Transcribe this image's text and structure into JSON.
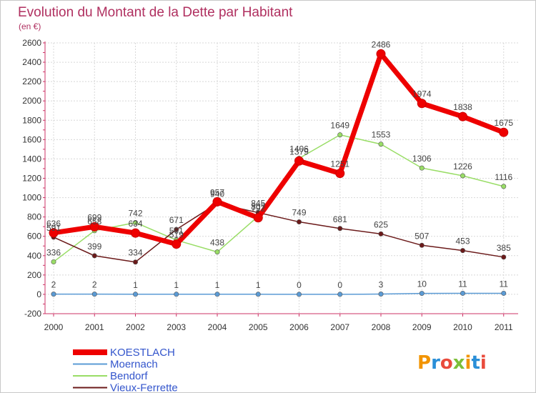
{
  "chart_data": {
    "type": "line",
    "title": "Evolution du Montant de la Dette par Habitant",
    "subtitle": "(en €)",
    "xlabel": "",
    "ylabel": "",
    "x": [
      "2000",
      "2001",
      "2002",
      "2003",
      "2004",
      "2005",
      "2006",
      "2007",
      "2008",
      "2009",
      "2010",
      "2011"
    ],
    "ylim": [
      -200,
      2600
    ],
    "yticks": [
      -200,
      0,
      200,
      400,
      600,
      800,
      1000,
      1200,
      1400,
      1600,
      1800,
      2000,
      2200,
      2400,
      2600
    ],
    "grid": true,
    "legend_position": "bottom-left",
    "series": [
      {
        "name": "KOESTLACH",
        "color": "#ee0000",
        "width": 7,
        "marker_r": 6,
        "values": [
          636,
          699,
          634,
          519,
          957,
          792,
          1379,
          1251,
          2486,
          1974,
          1838,
          1675
        ]
      },
      {
        "name": "Moernach",
        "color": "#5b9bd5",
        "width": 1.5,
        "marker_r": 3.2,
        "values": [
          2,
          2,
          1,
          1,
          1,
          1,
          0,
          0,
          3,
          10,
          11,
          11
        ]
      },
      {
        "name": "Bendorf",
        "color": "#99dd66",
        "width": 1.5,
        "marker_r": 3.2,
        "values": [
          336,
          658,
          742,
          561,
          438,
          807,
          1406,
          1649,
          1553,
          1306,
          1226,
          1116
        ]
      },
      {
        "name": "Vieux-Ferrette",
        "color": "#6b1a1a",
        "width": 1.5,
        "marker_r": 3.2,
        "values": [
          591,
          399,
          334,
          671,
          940,
          845,
          749,
          681,
          625,
          507,
          453,
          385
        ]
      }
    ]
  },
  "logo": {
    "text": "Proxiti"
  }
}
